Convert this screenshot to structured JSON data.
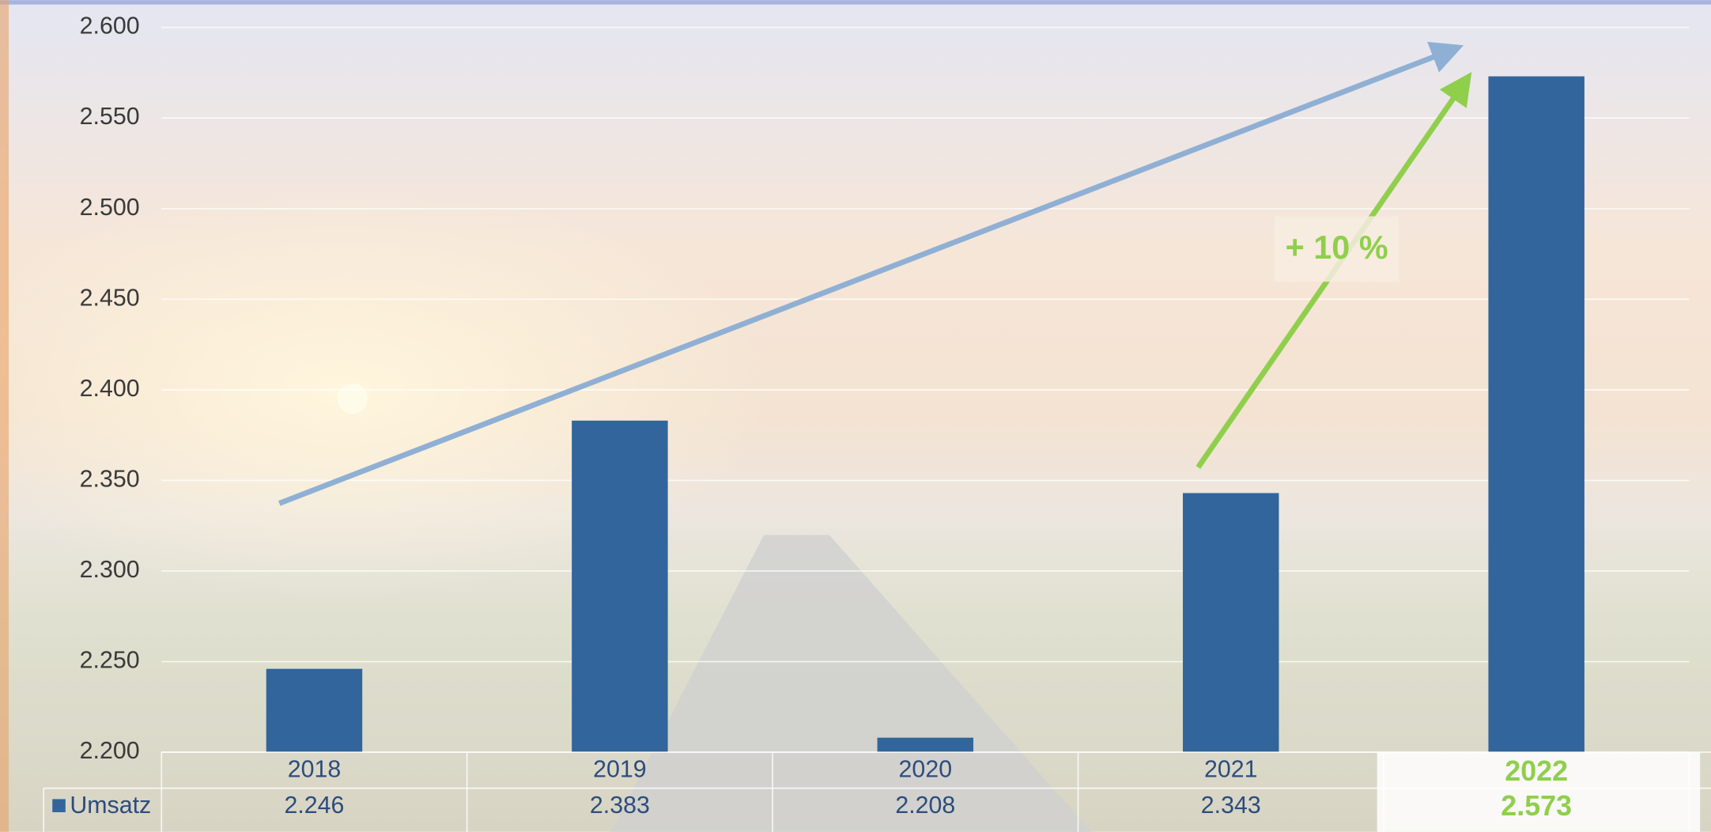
{
  "chart_data": {
    "type": "bar",
    "categories": [
      "2018",
      "2019",
      "2020",
      "2021",
      "2022"
    ],
    "series": [
      {
        "name": "Umsatz",
        "color": "#31659b",
        "values": [
          2246,
          2383,
          2208,
          2343,
          2573
        ],
        "value_labels": [
          "2.246",
          "2.383",
          "2.208",
          "2.343",
          "2.573"
        ]
      }
    ],
    "ylim": [
      2200,
      2600
    ],
    "yticks": [
      {
        "value": 2200,
        "label": "2.200"
      },
      {
        "value": 2250,
        "label": "2.250"
      },
      {
        "value": 2300,
        "label": "2.300"
      },
      {
        "value": 2350,
        "label": "2.350"
      },
      {
        "value": 2400,
        "label": "2.400"
      },
      {
        "value": 2450,
        "label": "2.450"
      },
      {
        "value": 2500,
        "label": "2.500"
      },
      {
        "value": 2550,
        "label": "2.550"
      },
      {
        "value": 2600,
        "label": "2.600"
      }
    ],
    "grid": true,
    "annotation": "+ 10 %",
    "highlight_color": "#8fcf4c"
  }
}
